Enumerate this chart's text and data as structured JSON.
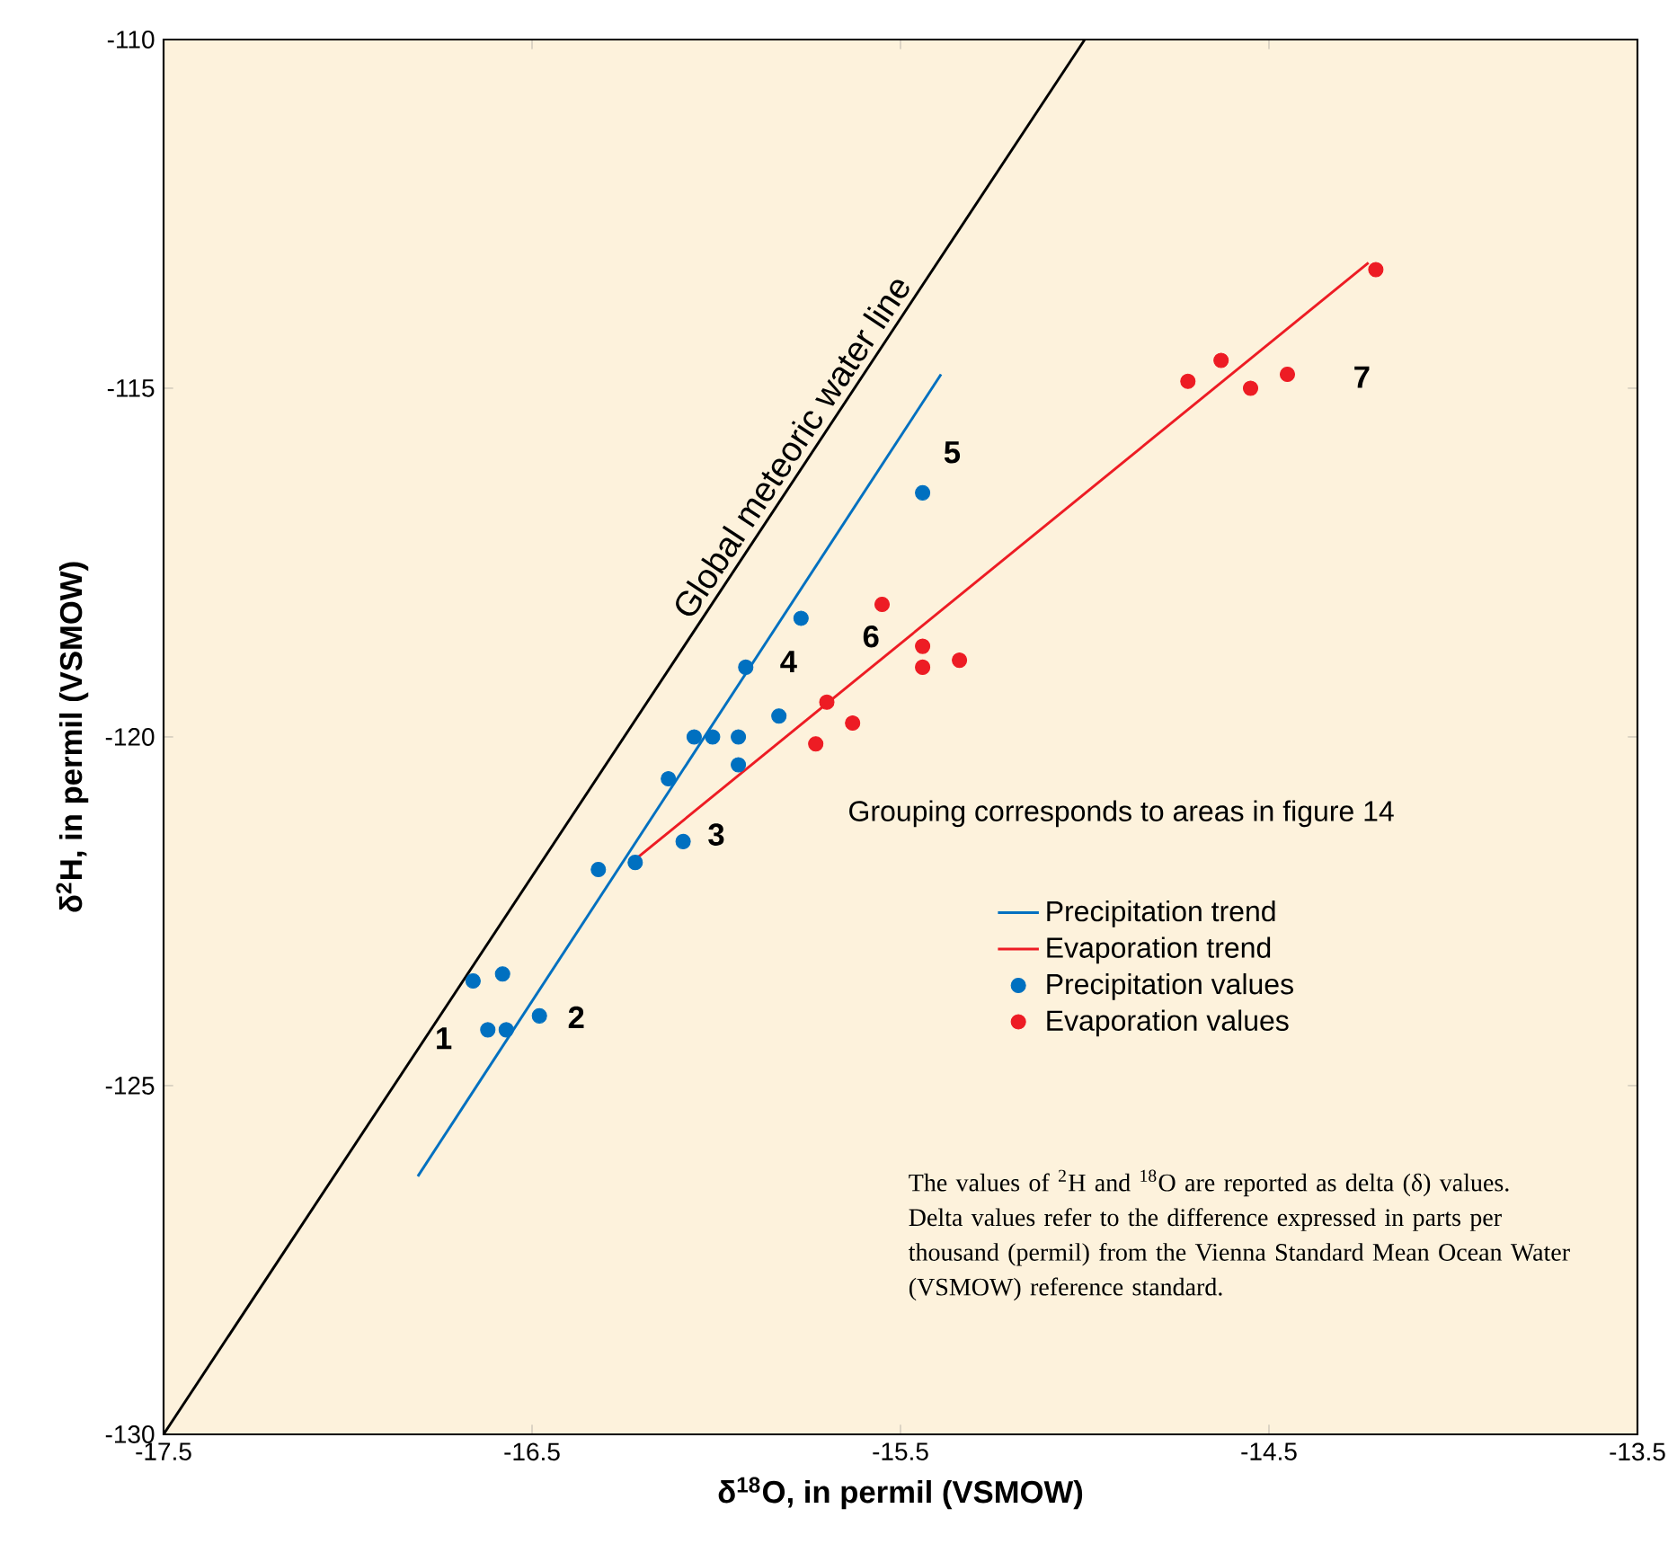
{
  "chart_data": {
    "type": "line",
    "xlabel": "δ$^{18}$O, in permil (VSMOW)",
    "ylabel": "δ$^{2}$H, in permil (VSMOW)",
    "xlim": [
      -17.5,
      -13.5
    ],
    "ylim": [
      -130,
      -110
    ],
    "xticks": [
      -17.5,
      -16.5,
      -15.5,
      -14.5,
      -13.5
    ],
    "yticks": [
      -130,
      -125,
      -120,
      -115,
      -110
    ],
    "legend": "bottom right",
    "line_style": "solid",
    "series": [
      {
        "marker": "none",
        "color": "#000000",
        "x": [
          -17.5,
          -15.0
        ],
        "values": [
          -130,
          -110
        ]
      },
      {
        "marker": "none",
        "name": "Precipitation trend",
        "color": "#0070c0",
        "x": [
          -16.81,
          -15.39
        ],
        "values": [
          -126.3,
          -114.8
        ]
      },
      {
        "marker": "none",
        "name": "Evaporation trend",
        "color": "#ed1c24",
        "x": [
          -16.23,
          -14.23
        ],
        "values": [
          -121.8,
          -113.2
        ]
      },
      {
        "type": "scatter",
        "name": "Precipitation values",
        "color": "#0070c0",
        "x": [
          -16.66,
          -16.58,
          -16.62,
          -16.57,
          -16.48,
          -16.32,
          -16.22,
          -16.09,
          -16.13,
          -16.06,
          -16.01,
          -15.94,
          -15.94,
          -15.92,
          -15.83,
          -15.77,
          -15.44
        ],
        "values": [
          -123.5,
          -123.4,
          -124.2,
          -124.2,
          -124.0,
          -121.9,
          -121.8,
          -121.5,
          -120.6,
          -120.0,
          -120.0,
          -120.0,
          -120.4,
          -119.0,
          -119.7,
          -118.3,
          -116.5
        ]
      },
      {
        "type": "scatter",
        "name": "Evaporation values",
        "color": "#ed1c24",
        "x": [
          -15.73,
          -15.7,
          -15.63,
          -15.55,
          -15.44,
          -15.44,
          -15.34,
          -14.72,
          -14.63,
          -14.55,
          -14.45,
          -14.21
        ],
        "values": [
          -120.1,
          -119.5,
          -119.8,
          -118.1,
          -118.7,
          -119.0,
          -118.9,
          -114.9,
          -114.6,
          -115.0,
          -114.8,
          -113.3
        ]
      }
    ],
    "annotations": [
      {
        "text": "Global meteoric water line",
        "x": -15.75,
        "y": -116.0
      },
      "1",
      "2",
      "3",
      "4",
      "5",
      "6",
      "7",
      "Grouping corresponds to areas in figure 14",
      "The values of $^{2}$H and $^{18}$O are reported as delta (δ) values. Delta values refer to the difference expressed in parts per thousand (permil) from the Vienna Standard Mean Ocean Water (VSMOW) reference standard."
    ]
  }
}
